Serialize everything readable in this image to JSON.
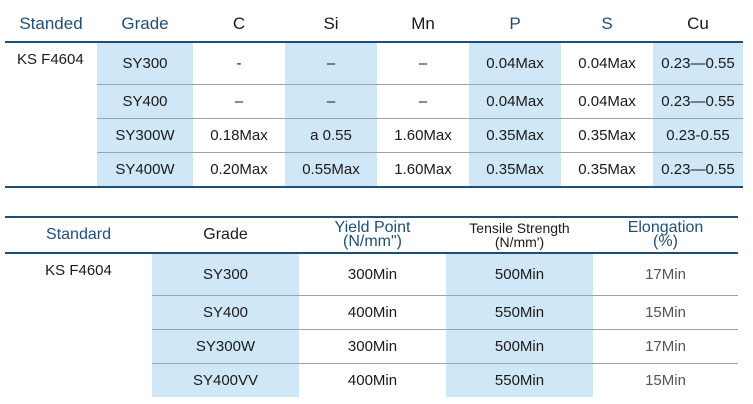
{
  "chemical": {
    "headers": [
      "Standed",
      "Grade",
      "C",
      "Si",
      "Mn",
      "P",
      "S",
      "Cu"
    ],
    "standard": "KS F4604",
    "rows": [
      {
        "grade": "SY300",
        "c": "-",
        "si": "–",
        "mn": "–",
        "p": "0.04Max",
        "s": "0.04Max",
        "cu": "0.23—0.55"
      },
      {
        "grade": "SY400",
        "c": "–",
        "si": "–",
        "mn": "–",
        "p": "0.04Max",
        "s": "0.04Max",
        "cu": "0.23—0.55"
      },
      {
        "grade": "SY300W",
        "c": "0.18Max",
        "si": "a 0.55",
        "mn": "1.60Max",
        "p": "0.35Max",
        "s": "0.35Max",
        "cu": "0.23-0.55"
      },
      {
        "grade": "SY400W",
        "c": "0.20Max",
        "si": "0.55Max",
        "mn": "1.60Max",
        "p": "0.35Max",
        "s": "0.35Max",
        "cu": "0.23—0.55"
      }
    ]
  },
  "mechanical": {
    "headers": {
      "standard": "Standard",
      "grade": "Grade",
      "yield_line1": "Yield Point",
      "yield_line2": "(N/mm\")",
      "tensile_line1": "Tensile Strength",
      "tensile_line2": "(N/mm')",
      "elong_line1": "Elongation",
      "elong_line2": "(%)"
    },
    "standard": "KS F4604",
    "rows": [
      {
        "grade": "SY300",
        "yield": "300Min",
        "tensile": "500Min",
        "elong": "17Min"
      },
      {
        "grade": "SY400",
        "yield": "400Min",
        "tensile": "550Min",
        "elong": "15Min"
      },
      {
        "grade": "SY300W",
        "yield": "300Min",
        "tensile": "500Min",
        "elong": "17Min"
      },
      {
        "grade": "SY400VV",
        "yield": "400Min",
        "tensile": "550Min",
        "elong": "15Min"
      }
    ]
  },
  "colors": {
    "highlight": "#cfe7f7",
    "rule": "#1f4e79",
    "header_text": "#1f4e79"
  }
}
